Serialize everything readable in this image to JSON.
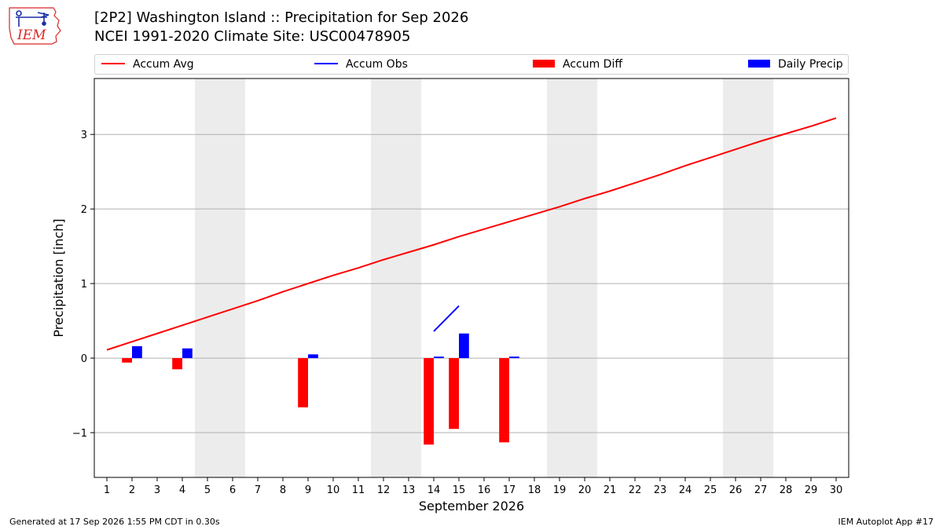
{
  "header": {
    "title_line1": "[2P2] Washington Island :: Precipitation for Sep 2026",
    "title_line2": "NCEI 1991-2020 Climate Site: USC00478905",
    "logo_text": "IEM"
  },
  "legend": {
    "items": [
      {
        "label": "Accum Avg",
        "color": "#ff0000",
        "kind": "line"
      },
      {
        "label": "Accum Obs",
        "color": "#0000ff",
        "kind": "line"
      },
      {
        "label": "Accum Diff",
        "color": "#ff0000",
        "kind": "box"
      },
      {
        "label": "Daily Precip",
        "color": "#0000ff",
        "kind": "box"
      }
    ]
  },
  "footer": {
    "left": "Generated at 17 Sep 2026 1:55 PM CDT in 0.30s",
    "right": "IEM Autoplot App #17"
  },
  "chart_data": {
    "type": "bar",
    "xlabel": "September 2026",
    "ylabel": "Precipitation [inch]",
    "x_ticks": [
      "1",
      "2",
      "3",
      "4",
      "5",
      "6",
      "7",
      "8",
      "9",
      "10",
      "11",
      "12",
      "13",
      "14",
      "15",
      "16",
      "17",
      "18",
      "19",
      "20",
      "21",
      "22",
      "23",
      "24",
      "25",
      "26",
      "27",
      "28",
      "29",
      "30"
    ],
    "xlim": [
      0.5,
      30.5
    ],
    "ylim": [
      -1.6,
      3.75
    ],
    "y_ticks": [
      -1,
      0,
      1,
      2,
      3
    ],
    "y_tick_labels": [
      "−1",
      "0",
      "1",
      "2",
      "3"
    ],
    "grid": "horizontal",
    "weekend_shading": [
      [
        4.5,
        6.5
      ],
      [
        11.5,
        13.5
      ],
      [
        18.5,
        20.5
      ],
      [
        25.5,
        27.5
      ]
    ],
    "series": [
      {
        "name": "Accum Avg",
        "type": "line",
        "color": "#ff0000",
        "x": [
          1,
          2,
          3,
          4,
          5,
          6,
          7,
          8,
          9,
          10,
          11,
          12,
          13,
          14,
          15,
          16,
          17,
          18,
          19,
          20,
          21,
          22,
          23,
          24,
          25,
          26,
          27,
          28,
          29,
          30
        ],
        "values": [
          0.11,
          0.22,
          0.33,
          0.44,
          0.55,
          0.66,
          0.77,
          0.89,
          1.0,
          1.11,
          1.21,
          1.32,
          1.42,
          1.52,
          1.63,
          1.73,
          1.83,
          1.93,
          2.03,
          2.14,
          2.24,
          2.35,
          2.46,
          2.58,
          2.69,
          2.8,
          2.91,
          3.01,
          3.11,
          3.22
        ]
      },
      {
        "name": "Accum Obs",
        "type": "line",
        "color": "#0000ff",
        "x": [
          14,
          15
        ],
        "values": [
          0.36,
          0.7
        ]
      },
      {
        "name": "Accum Diff",
        "type": "bar",
        "color": "#ff0000",
        "x": [
          2,
          4,
          9,
          14,
          15,
          17
        ],
        "values": [
          -0.06,
          -0.15,
          -0.66,
          -1.16,
          -0.95,
          -1.13
        ]
      },
      {
        "name": "Daily Precip",
        "type": "bar",
        "color": "#0000ff",
        "x": [
          2,
          4,
          9,
          14,
          15,
          17
        ],
        "values": [
          0.16,
          0.13,
          0.05,
          0.02,
          0.33,
          0.02
        ]
      }
    ]
  }
}
